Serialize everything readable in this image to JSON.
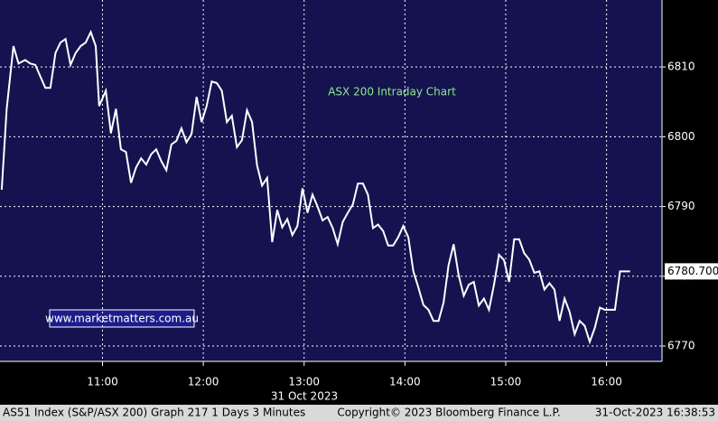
{
  "chart_data": {
    "type": "line",
    "title": "ASX 200 Intraday Chart",
    "watermark": "www.marketmatters.com.au",
    "date_label": "31 Oct 2023",
    "footer": {
      "left": "AS51 Index (S&P/ASX 200) Graph 217 1 Days 3 Minutes",
      "center": "Copyright© 2023 Bloomberg Finance L.P.",
      "right": "31-Oct-2023 16:38:53"
    },
    "x": [
      "10:00",
      "10:03",
      "10:07",
      "10:10",
      "10:14",
      "10:17",
      "10:20",
      "10:26",
      "10:29",
      "10:32",
      "10:35",
      "10:38",
      "10:41",
      "10:44",
      "10:47",
      "10:50",
      "10:53",
      "10:56",
      "10:58",
      "11:02",
      "11:05",
      "11:08",
      "11:11",
      "11:14",
      "11:17",
      "11:20",
      "11:23",
      "11:26",
      "11:29",
      "11:32",
      "11:35",
      "11:38",
      "11:41",
      "11:44",
      "11:47",
      "11:50",
      "11:53",
      "11:56",
      "11:59",
      "12:02",
      "12:05",
      "12:08",
      "12:11",
      "12:14",
      "12:17",
      "12:20",
      "12:23",
      "12:26",
      "12:29",
      "12:32",
      "12:35",
      "12:38",
      "12:41",
      "12:44",
      "12:47",
      "12:50",
      "12:53",
      "12:56",
      "12:59",
      "13:02",
      "13:05",
      "13:08",
      "13:11",
      "13:14",
      "13:17",
      "13:20",
      "13:23",
      "13:26",
      "13:29",
      "13:32",
      "13:35",
      "13:38",
      "13:41",
      "13:44",
      "13:47",
      "13:50",
      "13:53",
      "13:56",
      "13:59",
      "14:02",
      "14:05",
      "14:08",
      "14:11",
      "14:14",
      "14:17",
      "14:20",
      "14:23",
      "14:26",
      "14:29",
      "14:32",
      "14:35",
      "14:38",
      "14:41",
      "14:44",
      "14:47",
      "14:50",
      "14:53",
      "14:56",
      "14:59",
      "15:02",
      "15:05",
      "15:08",
      "15:11",
      "15:14",
      "15:17",
      "15:20",
      "15:23",
      "15:26",
      "15:29",
      "15:32",
      "15:35",
      "15:38",
      "15:41",
      "15:44",
      "15:47",
      "15:50",
      "15:53",
      "15:56",
      "15:59",
      "16:02",
      "16:05",
      "16:08",
      "16:14"
    ],
    "series": [
      {
        "name": "AS51 Index",
        "color": "#ffffff",
        "values": [
          6792.4,
          6804,
          6813,
          6810.5,
          6811,
          6810.5,
          6810.3,
          6807,
          6807,
          6812,
          6813.5,
          6814,
          6810.3,
          6812,
          6813,
          6813.5,
          6815,
          6813,
          6804.4,
          6806.6,
          6800.5,
          6804,
          6798.2,
          6797.8,
          6793.4,
          6795.6,
          6796.9,
          6796,
          6797.5,
          6798.2,
          6796.5,
          6795.2,
          6798.9,
          6799.4,
          6801.2,
          6799.2,
          6800.4,
          6805.7,
          6802.1,
          6804.4,
          6807.9,
          6807.7,
          6806.6,
          6802.1,
          6803,
          6798.5,
          6799.5,
          6803.8,
          6802.1,
          6795.9,
          6793,
          6794.1,
          6784.9,
          6789.5,
          6787,
          6788.2,
          6785.9,
          6787.2,
          6792.6,
          6789.1,
          6791.7,
          6790,
          6788,
          6788.5,
          6786.9,
          6784.6,
          6787.8,
          6789.1,
          6790.3,
          6793.3,
          6793.3,
          6791.7,
          6786.9,
          6787.4,
          6786.5,
          6784.4,
          6784.4,
          6785.6,
          6787.2,
          6785.6,
          6780.7,
          6778.4,
          6775.9,
          6775.2,
          6773.6,
          6773.6,
          6776.2,
          6781.6,
          6784.6,
          6780.1,
          6777.2,
          6778.8,
          6779.2,
          6775.8,
          6776.8,
          6775.2,
          6778.8,
          6783.1,
          6782.3,
          6779.2,
          6785.3,
          6785.3,
          6783.3,
          6782.4,
          6780.5,
          6780.7,
          6778.1,
          6779,
          6778.1,
          6773.6,
          6776.8,
          6774.9,
          6771.7,
          6773.6,
          6772.9,
          6770.6,
          6772.6,
          6775.5,
          6775.2,
          6775.2,
          6775.2,
          6780.7,
          6780.7
        ]
      }
    ],
    "last_value_label": "6780.700",
    "xlim": [
      "09:59",
      "16:33"
    ],
    "xticks": [
      "11:00",
      "12:00",
      "13:00",
      "14:00",
      "15:00",
      "16:00"
    ],
    "ylim": [
      6767.8,
      6819.6
    ],
    "yticks": [
      6770,
      6780,
      6790,
      6800,
      6810
    ],
    "grid": true,
    "background": "#14134f"
  }
}
